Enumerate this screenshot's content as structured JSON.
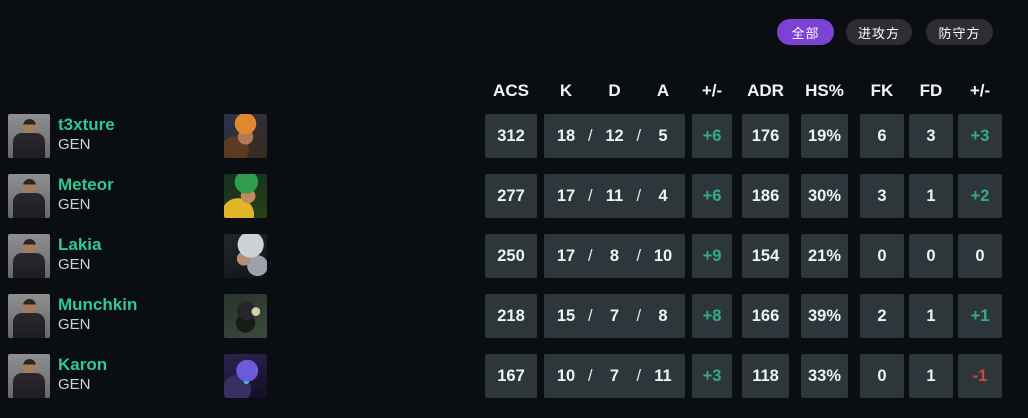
{
  "filters": {
    "all": "全部",
    "attack": "进攻方",
    "defense": "防守方"
  },
  "table": {
    "headers": {
      "acs": "ACS",
      "k": "K",
      "d": "D",
      "a": "A",
      "diff": "+/-",
      "adr": "ADR",
      "hs": "HS%",
      "fk": "FK",
      "fd": "FD",
      "diff2": "+/-"
    },
    "kda_separator": "/"
  },
  "players": [
    {
      "name": "t3xture",
      "team": "GEN",
      "agent": "raze",
      "acs": "312",
      "k": "18",
      "d": "12",
      "a": "5",
      "diff": "+6",
      "diff_tone": "pos",
      "adr": "176",
      "hs": "19%",
      "fk": "6",
      "fd": "3",
      "fkfd_diff": "+3",
      "fkfd_tone": "pos"
    },
    {
      "name": "Meteor",
      "team": "GEN",
      "agent": "killjoy",
      "acs": "277",
      "k": "17",
      "d": "11",
      "a": "4",
      "diff": "+6",
      "diff_tone": "pos",
      "adr": "186",
      "hs": "30%",
      "fk": "3",
      "fd": "1",
      "fkfd_diff": "+2",
      "fkfd_tone": "pos"
    },
    {
      "name": "Lakia",
      "team": "GEN",
      "agent": "vyse",
      "acs": "250",
      "k": "17",
      "d": "8",
      "a": "10",
      "diff": "+9",
      "diff_tone": "pos",
      "adr": "154",
      "hs": "21%",
      "fk": "0",
      "fd": "0",
      "fkfd_diff": "0",
      "fkfd_tone": "neutral"
    },
    {
      "name": "Munchkin",
      "team": "GEN",
      "agent": "viper",
      "acs": "218",
      "k": "15",
      "d": "7",
      "a": "8",
      "diff": "+8",
      "diff_tone": "pos",
      "adr": "166",
      "hs": "39%",
      "fk": "2",
      "fd": "1",
      "fkfd_diff": "+1",
      "fkfd_tone": "pos"
    },
    {
      "name": "Karon",
      "team": "GEN",
      "agent": "omen",
      "acs": "167",
      "k": "10",
      "d": "7",
      "a": "11",
      "diff": "+3",
      "diff_tone": "pos",
      "adr": "118",
      "hs": "33%",
      "fk": "0",
      "fd": "1",
      "fkfd_diff": "-1",
      "fkfd_tone": "neg"
    }
  ],
  "colors": {
    "background": "#0a0d12",
    "cell_background": "#2c363b",
    "accent_purple": "#7b42d4",
    "pill_dark": "#2d2d33",
    "name_green": "#2fca92",
    "positive": "#35ac89",
    "negative": "#d6453e",
    "text_white": "#eef2f3"
  }
}
